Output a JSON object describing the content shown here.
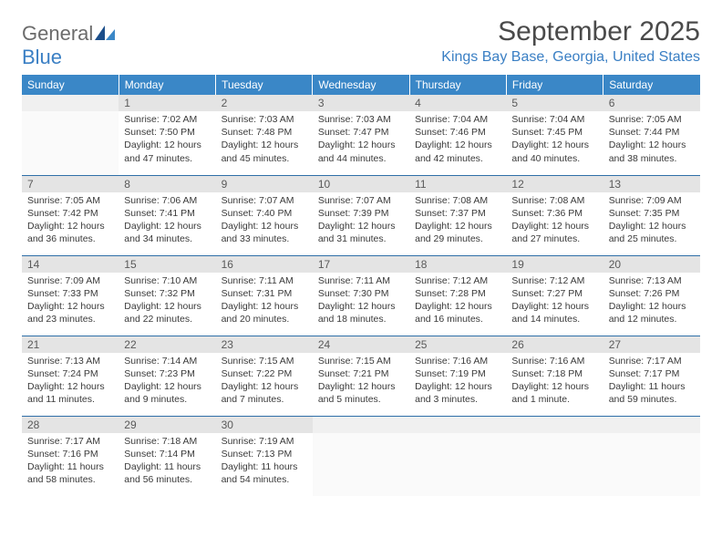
{
  "logo": {
    "word1": "General",
    "word2": "Blue"
  },
  "title": "September 2025",
  "location": "Kings Bay Base, Georgia, United States",
  "colors": {
    "header_bg": "#3a87c7",
    "header_text": "#ffffff",
    "accent": "#3a7fc4",
    "daynum_bg": "#e4e4e4",
    "rule": "#2f6fa8"
  },
  "day_headers": [
    "Sunday",
    "Monday",
    "Tuesday",
    "Wednesday",
    "Thursday",
    "Friday",
    "Saturday"
  ],
  "weeks": [
    [
      null,
      {
        "n": "1",
        "sr": "Sunrise: 7:02 AM",
        "ss": "Sunset: 7:50 PM",
        "d1": "Daylight: 12 hours",
        "d2": "and 47 minutes."
      },
      {
        "n": "2",
        "sr": "Sunrise: 7:03 AM",
        "ss": "Sunset: 7:48 PM",
        "d1": "Daylight: 12 hours",
        "d2": "and 45 minutes."
      },
      {
        "n": "3",
        "sr": "Sunrise: 7:03 AM",
        "ss": "Sunset: 7:47 PM",
        "d1": "Daylight: 12 hours",
        "d2": "and 44 minutes."
      },
      {
        "n": "4",
        "sr": "Sunrise: 7:04 AM",
        "ss": "Sunset: 7:46 PM",
        "d1": "Daylight: 12 hours",
        "d2": "and 42 minutes."
      },
      {
        "n": "5",
        "sr": "Sunrise: 7:04 AM",
        "ss": "Sunset: 7:45 PM",
        "d1": "Daylight: 12 hours",
        "d2": "and 40 minutes."
      },
      {
        "n": "6",
        "sr": "Sunrise: 7:05 AM",
        "ss": "Sunset: 7:44 PM",
        "d1": "Daylight: 12 hours",
        "d2": "and 38 minutes."
      }
    ],
    [
      {
        "n": "7",
        "sr": "Sunrise: 7:05 AM",
        "ss": "Sunset: 7:42 PM",
        "d1": "Daylight: 12 hours",
        "d2": "and 36 minutes."
      },
      {
        "n": "8",
        "sr": "Sunrise: 7:06 AM",
        "ss": "Sunset: 7:41 PM",
        "d1": "Daylight: 12 hours",
        "d2": "and 34 minutes."
      },
      {
        "n": "9",
        "sr": "Sunrise: 7:07 AM",
        "ss": "Sunset: 7:40 PM",
        "d1": "Daylight: 12 hours",
        "d2": "and 33 minutes."
      },
      {
        "n": "10",
        "sr": "Sunrise: 7:07 AM",
        "ss": "Sunset: 7:39 PM",
        "d1": "Daylight: 12 hours",
        "d2": "and 31 minutes."
      },
      {
        "n": "11",
        "sr": "Sunrise: 7:08 AM",
        "ss": "Sunset: 7:37 PM",
        "d1": "Daylight: 12 hours",
        "d2": "and 29 minutes."
      },
      {
        "n": "12",
        "sr": "Sunrise: 7:08 AM",
        "ss": "Sunset: 7:36 PM",
        "d1": "Daylight: 12 hours",
        "d2": "and 27 minutes."
      },
      {
        "n": "13",
        "sr": "Sunrise: 7:09 AM",
        "ss": "Sunset: 7:35 PM",
        "d1": "Daylight: 12 hours",
        "d2": "and 25 minutes."
      }
    ],
    [
      {
        "n": "14",
        "sr": "Sunrise: 7:09 AM",
        "ss": "Sunset: 7:33 PM",
        "d1": "Daylight: 12 hours",
        "d2": "and 23 minutes."
      },
      {
        "n": "15",
        "sr": "Sunrise: 7:10 AM",
        "ss": "Sunset: 7:32 PM",
        "d1": "Daylight: 12 hours",
        "d2": "and 22 minutes."
      },
      {
        "n": "16",
        "sr": "Sunrise: 7:11 AM",
        "ss": "Sunset: 7:31 PM",
        "d1": "Daylight: 12 hours",
        "d2": "and 20 minutes."
      },
      {
        "n": "17",
        "sr": "Sunrise: 7:11 AM",
        "ss": "Sunset: 7:30 PM",
        "d1": "Daylight: 12 hours",
        "d2": "and 18 minutes."
      },
      {
        "n": "18",
        "sr": "Sunrise: 7:12 AM",
        "ss": "Sunset: 7:28 PM",
        "d1": "Daylight: 12 hours",
        "d2": "and 16 minutes."
      },
      {
        "n": "19",
        "sr": "Sunrise: 7:12 AM",
        "ss": "Sunset: 7:27 PM",
        "d1": "Daylight: 12 hours",
        "d2": "and 14 minutes."
      },
      {
        "n": "20",
        "sr": "Sunrise: 7:13 AM",
        "ss": "Sunset: 7:26 PM",
        "d1": "Daylight: 12 hours",
        "d2": "and 12 minutes."
      }
    ],
    [
      {
        "n": "21",
        "sr": "Sunrise: 7:13 AM",
        "ss": "Sunset: 7:24 PM",
        "d1": "Daylight: 12 hours",
        "d2": "and 11 minutes."
      },
      {
        "n": "22",
        "sr": "Sunrise: 7:14 AM",
        "ss": "Sunset: 7:23 PM",
        "d1": "Daylight: 12 hours",
        "d2": "and 9 minutes."
      },
      {
        "n": "23",
        "sr": "Sunrise: 7:15 AM",
        "ss": "Sunset: 7:22 PM",
        "d1": "Daylight: 12 hours",
        "d2": "and 7 minutes."
      },
      {
        "n": "24",
        "sr": "Sunrise: 7:15 AM",
        "ss": "Sunset: 7:21 PM",
        "d1": "Daylight: 12 hours",
        "d2": "and 5 minutes."
      },
      {
        "n": "25",
        "sr": "Sunrise: 7:16 AM",
        "ss": "Sunset: 7:19 PM",
        "d1": "Daylight: 12 hours",
        "d2": "and 3 minutes."
      },
      {
        "n": "26",
        "sr": "Sunrise: 7:16 AM",
        "ss": "Sunset: 7:18 PM",
        "d1": "Daylight: 12 hours",
        "d2": "and 1 minute."
      },
      {
        "n": "27",
        "sr": "Sunrise: 7:17 AM",
        "ss": "Sunset: 7:17 PM",
        "d1": "Daylight: 11 hours",
        "d2": "and 59 minutes."
      }
    ],
    [
      {
        "n": "28",
        "sr": "Sunrise: 7:17 AM",
        "ss": "Sunset: 7:16 PM",
        "d1": "Daylight: 11 hours",
        "d2": "and 58 minutes."
      },
      {
        "n": "29",
        "sr": "Sunrise: 7:18 AM",
        "ss": "Sunset: 7:14 PM",
        "d1": "Daylight: 11 hours",
        "d2": "and 56 minutes."
      },
      {
        "n": "30",
        "sr": "Sunrise: 7:19 AM",
        "ss": "Sunset: 7:13 PM",
        "d1": "Daylight: 11 hours",
        "d2": "and 54 minutes."
      },
      null,
      null,
      null,
      null
    ]
  ]
}
